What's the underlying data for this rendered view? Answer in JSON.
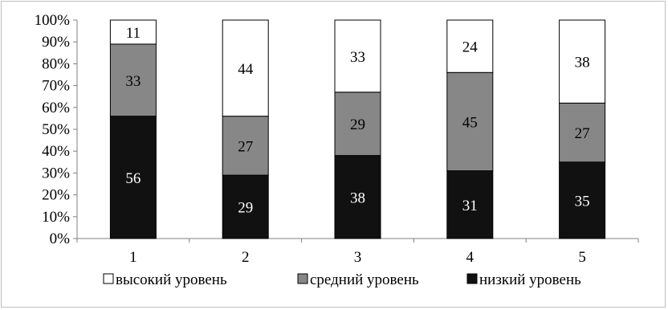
{
  "chart_data": {
    "type": "bar",
    "stacked": true,
    "percent_stacked": true,
    "categories": [
      "1",
      "2",
      "3",
      "4",
      "5"
    ],
    "series": [
      {
        "name": "низкий уровень",
        "color": "#111111",
        "label_color": "#ffffff",
        "values": [
          56,
          29,
          38,
          31,
          35
        ]
      },
      {
        "name": "средний уровень",
        "color": "#878787",
        "label_color": "#000000",
        "values": [
          33,
          27,
          29,
          45,
          27
        ]
      },
      {
        "name": "высокий уровень",
        "color": "#ffffff",
        "label_color": "#000000",
        "values": [
          11,
          44,
          33,
          24,
          38
        ]
      }
    ],
    "legend_order": [
      "высокий уровень",
      "средний уровень",
      "низкий уровень"
    ],
    "yticks": [
      "0%",
      "10%",
      "20%",
      "30%",
      "40%",
      "50%",
      "60%",
      "70%",
      "80%",
      "90%",
      "100%"
    ],
    "ylim": [
      0,
      100
    ],
    "grid": false,
    "legend_position": "bottom",
    "title": "",
    "xlabel": "",
    "ylabel": ""
  }
}
